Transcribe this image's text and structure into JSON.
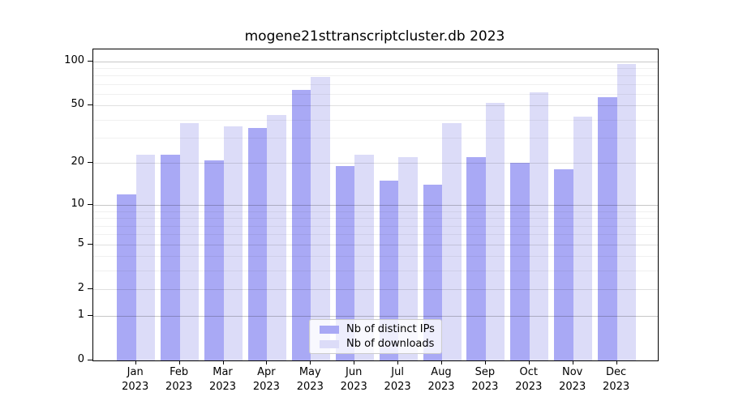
{
  "chart_data": {
    "type": "bar",
    "title": "mogene21sttranscriptcluster.db 2023",
    "categories": [
      "Jan 2023",
      "Feb 2023",
      "Mar 2023",
      "Apr 2023",
      "May 2023",
      "Jun 2023",
      "Jul 2023",
      "Aug 2023",
      "Sep 2023",
      "Oct 2023",
      "Nov 2023",
      "Dec 2023"
    ],
    "series": [
      {
        "name": "Nb of distinct IPs",
        "color": "#a9a9f5",
        "values": [
          12,
          23,
          21,
          35,
          64,
          19,
          15,
          14,
          22,
          20,
          18,
          57
        ]
      },
      {
        "name": "Nb of downloads",
        "color": "#dcdcf8",
        "values": [
          23,
          38,
          36,
          43,
          78,
          23,
          22,
          38,
          52,
          62,
          42,
          96
        ]
      }
    ],
    "y_axis": {
      "scale": "log1p",
      "tick_labels": [
        0,
        1,
        2,
        5,
        10,
        20,
        50,
        100
      ],
      "minor_gridlines": [
        3,
        4,
        6,
        7,
        8,
        9,
        30,
        40,
        60,
        70,
        80,
        90
      ],
      "decade_gridlines": [
        1,
        10,
        100
      ],
      "ylim_top": 100
    },
    "legend": {
      "position": "bottom-center",
      "entries": [
        "Nb of distinct IPs",
        "Nb of downloads"
      ]
    },
    "grid": true
  }
}
